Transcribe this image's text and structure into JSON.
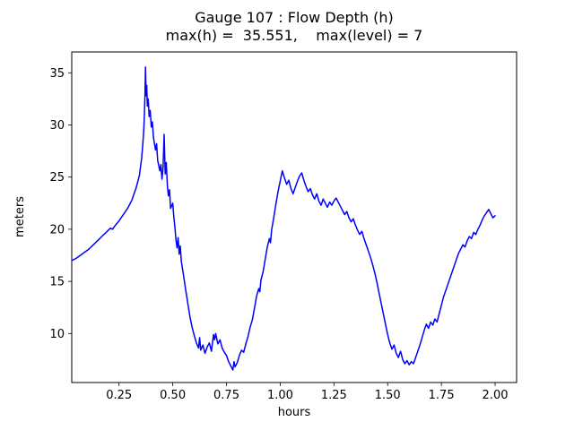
{
  "title": {
    "line1": "Gauge 107 : Flow Depth (h)",
    "line2": "max(h) =  35.551,    max(level) = 7"
  },
  "chart_data": {
    "type": "line",
    "title": "Gauge 107 : Flow Depth (h)",
    "subtitle": "max(h) =  35.551,    max(level) = 7",
    "xlabel": "hours",
    "ylabel": "meters",
    "xlim": [
      0.03,
      2.1
    ],
    "ylim": [
      5.3,
      37.0
    ],
    "xticks": [
      0.25,
      0.5,
      0.75,
      1.0,
      1.25,
      1.5,
      1.75,
      2.0
    ],
    "yticks": [
      10,
      15,
      20,
      25,
      30,
      35
    ],
    "grid": false,
    "legend": null,
    "line_color": "#0000ff",
    "max_h": 35.551,
    "max_level": 7,
    "series_name": "Flow Depth (h)",
    "points": [
      [
        0.03,
        17.0
      ],
      [
        0.05,
        17.2
      ],
      [
        0.07,
        17.5
      ],
      [
        0.09,
        17.8
      ],
      [
        0.11,
        18.1
      ],
      [
        0.13,
        18.5
      ],
      [
        0.15,
        18.9
      ],
      [
        0.17,
        19.3
      ],
      [
        0.19,
        19.7
      ],
      [
        0.2,
        19.9
      ],
      [
        0.21,
        20.1
      ],
      [
        0.22,
        20.0
      ],
      [
        0.23,
        20.3
      ],
      [
        0.25,
        20.8
      ],
      [
        0.27,
        21.4
      ],
      [
        0.29,
        22.0
      ],
      [
        0.31,
        22.8
      ],
      [
        0.33,
        24.0
      ],
      [
        0.345,
        25.2
      ],
      [
        0.355,
        26.8
      ],
      [
        0.36,
        28.0
      ],
      [
        0.365,
        29.5
      ],
      [
        0.368,
        31.0
      ],
      [
        0.371,
        33.0
      ],
      [
        0.373,
        35.551
      ],
      [
        0.376,
        32.8
      ],
      [
        0.379,
        33.8
      ],
      [
        0.382,
        31.8
      ],
      [
        0.386,
        32.5
      ],
      [
        0.39,
        30.8
      ],
      [
        0.395,
        31.4
      ],
      [
        0.4,
        29.8
      ],
      [
        0.405,
        30.3
      ],
      [
        0.41,
        28.8
      ],
      [
        0.42,
        27.6
      ],
      [
        0.425,
        28.2
      ],
      [
        0.43,
        26.6
      ],
      [
        0.44,
        25.6
      ],
      [
        0.445,
        26.2
      ],
      [
        0.45,
        24.8
      ],
      [
        0.455,
        25.9
      ],
      [
        0.46,
        29.1
      ],
      [
        0.465,
        25.3
      ],
      [
        0.47,
        26.4
      ],
      [
        0.475,
        24.2
      ],
      [
        0.48,
        23.2
      ],
      [
        0.485,
        23.8
      ],
      [
        0.49,
        22.0
      ],
      [
        0.5,
        22.5
      ],
      [
        0.505,
        21.2
      ],
      [
        0.51,
        20.2
      ],
      [
        0.515,
        19.0
      ],
      [
        0.52,
        18.2
      ],
      [
        0.525,
        19.2
      ],
      [
        0.53,
        17.6
      ],
      [
        0.535,
        18.4
      ],
      [
        0.54,
        16.9
      ],
      [
        0.55,
        15.6
      ],
      [
        0.56,
        14.2
      ],
      [
        0.57,
        12.9
      ],
      [
        0.58,
        11.6
      ],
      [
        0.59,
        10.6
      ],
      [
        0.6,
        9.8
      ],
      [
        0.61,
        9.1
      ],
      [
        0.62,
        8.6
      ],
      [
        0.625,
        9.6
      ],
      [
        0.63,
        8.4
      ],
      [
        0.64,
        8.9
      ],
      [
        0.65,
        8.1
      ],
      [
        0.66,
        8.7
      ],
      [
        0.67,
        9.1
      ],
      [
        0.68,
        8.3
      ],
      [
        0.69,
        9.9
      ],
      [
        0.695,
        9.4
      ],
      [
        0.7,
        10.0
      ],
      [
        0.71,
        9.0
      ],
      [
        0.72,
        9.4
      ],
      [
        0.73,
        8.6
      ],
      [
        0.74,
        8.2
      ],
      [
        0.75,
        7.9
      ],
      [
        0.76,
        7.3
      ],
      [
        0.77,
        6.9
      ],
      [
        0.78,
        6.5
      ],
      [
        0.785,
        7.3
      ],
      [
        0.79,
        6.8
      ],
      [
        0.8,
        7.2
      ],
      [
        0.81,
        7.9
      ],
      [
        0.82,
        8.4
      ],
      [
        0.83,
        8.2
      ],
      [
        0.84,
        9.0
      ],
      [
        0.85,
        9.7
      ],
      [
        0.86,
        10.6
      ],
      [
        0.87,
        11.3
      ],
      [
        0.88,
        12.4
      ],
      [
        0.89,
        13.6
      ],
      [
        0.9,
        14.3
      ],
      [
        0.905,
        14.0
      ],
      [
        0.91,
        15.1
      ],
      [
        0.92,
        15.9
      ],
      [
        0.93,
        17.1
      ],
      [
        0.94,
        18.3
      ],
      [
        0.95,
        19.1
      ],
      [
        0.955,
        18.7
      ],
      [
        0.96,
        19.9
      ],
      [
        0.97,
        21.1
      ],
      [
        0.98,
        22.4
      ],
      [
        0.99,
        23.6
      ],
      [
        1.0,
        24.6
      ],
      [
        1.01,
        25.6
      ],
      [
        1.02,
        24.9
      ],
      [
        1.03,
        24.3
      ],
      [
        1.04,
        24.7
      ],
      [
        1.05,
        23.9
      ],
      [
        1.06,
        23.4
      ],
      [
        1.07,
        24.0
      ],
      [
        1.08,
        24.6
      ],
      [
        1.09,
        25.1
      ],
      [
        1.1,
        25.4
      ],
      [
        1.11,
        24.7
      ],
      [
        1.12,
        24.1
      ],
      [
        1.13,
        23.6
      ],
      [
        1.14,
        23.9
      ],
      [
        1.15,
        23.3
      ],
      [
        1.16,
        22.9
      ],
      [
        1.17,
        23.4
      ],
      [
        1.18,
        22.7
      ],
      [
        1.19,
        22.3
      ],
      [
        1.2,
        22.9
      ],
      [
        1.21,
        22.5
      ],
      [
        1.22,
        22.1
      ],
      [
        1.23,
        22.6
      ],
      [
        1.24,
        22.3
      ],
      [
        1.25,
        22.7
      ],
      [
        1.26,
        23.0
      ],
      [
        1.27,
        22.6
      ],
      [
        1.28,
        22.2
      ],
      [
        1.29,
        21.8
      ],
      [
        1.3,
        21.4
      ],
      [
        1.31,
        21.7
      ],
      [
        1.32,
        21.1
      ],
      [
        1.33,
        20.7
      ],
      [
        1.34,
        21.0
      ],
      [
        1.35,
        20.4
      ],
      [
        1.36,
        19.9
      ],
      [
        1.37,
        19.5
      ],
      [
        1.38,
        19.8
      ],
      [
        1.39,
        19.1
      ],
      [
        1.4,
        18.5
      ],
      [
        1.41,
        17.9
      ],
      [
        1.42,
        17.3
      ],
      [
        1.43,
        16.6
      ],
      [
        1.44,
        15.8
      ],
      [
        1.45,
        14.9
      ],
      [
        1.46,
        13.9
      ],
      [
        1.47,
        12.9
      ],
      [
        1.48,
        11.9
      ],
      [
        1.49,
        10.9
      ],
      [
        1.5,
        9.9
      ],
      [
        1.51,
        9.1
      ],
      [
        1.52,
        8.5
      ],
      [
        1.53,
        8.9
      ],
      [
        1.54,
        8.1
      ],
      [
        1.55,
        7.7
      ],
      [
        1.56,
        8.3
      ],
      [
        1.57,
        7.5
      ],
      [
        1.58,
        7.1
      ],
      [
        1.59,
        7.4
      ],
      [
        1.6,
        7.0
      ],
      [
        1.61,
        7.3
      ],
      [
        1.62,
        7.1
      ],
      [
        1.63,
        7.7
      ],
      [
        1.64,
        8.3
      ],
      [
        1.65,
        8.9
      ],
      [
        1.66,
        9.6
      ],
      [
        1.67,
        10.3
      ],
      [
        1.68,
        10.9
      ],
      [
        1.69,
        10.5
      ],
      [
        1.7,
        11.1
      ],
      [
        1.71,
        10.8
      ],
      [
        1.72,
        11.4
      ],
      [
        1.73,
        11.1
      ],
      [
        1.74,
        11.9
      ],
      [
        1.75,
        12.7
      ],
      [
        1.76,
        13.5
      ],
      [
        1.77,
        14.1
      ],
      [
        1.78,
        14.7
      ],
      [
        1.79,
        15.3
      ],
      [
        1.8,
        15.9
      ],
      [
        1.81,
        16.5
      ],
      [
        1.82,
        17.1
      ],
      [
        1.83,
        17.7
      ],
      [
        1.84,
        18.1
      ],
      [
        1.85,
        18.5
      ],
      [
        1.86,
        18.3
      ],
      [
        1.87,
        18.9
      ],
      [
        1.88,
        19.3
      ],
      [
        1.89,
        19.1
      ],
      [
        1.9,
        19.7
      ],
      [
        1.91,
        19.5
      ],
      [
        1.92,
        20.0
      ],
      [
        1.93,
        20.4
      ],
      [
        1.94,
        20.9
      ],
      [
        1.95,
        21.3
      ],
      [
        1.96,
        21.6
      ],
      [
        1.97,
        21.9
      ],
      [
        1.98,
        21.5
      ],
      [
        1.99,
        21.1
      ],
      [
        2.0,
        21.3
      ]
    ]
  }
}
